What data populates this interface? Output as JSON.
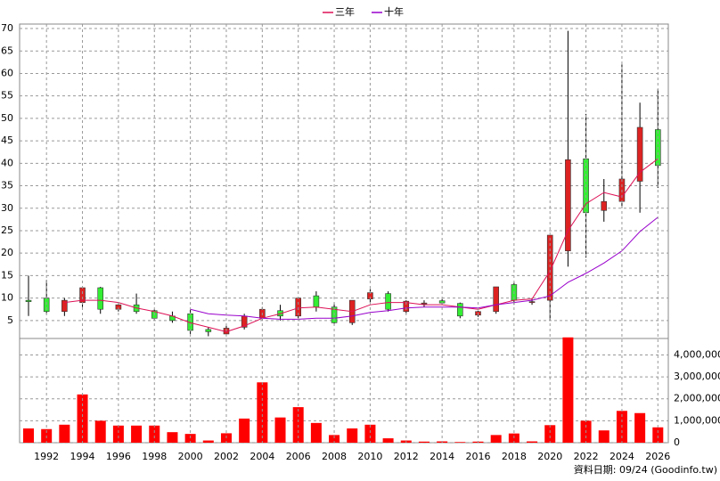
{
  "chart_data": [
    {
      "type": "candlestick",
      "open": [
        9.5,
        10,
        7,
        9,
        12.3,
        7.5,
        8.5,
        7.2,
        6,
        6.5,
        3,
        2,
        3.5,
        5.5,
        7.2,
        6,
        10.5,
        8,
        4.5,
        9.8,
        11,
        7,
        8.8,
        9.4,
        8.8,
        6.2,
        7,
        13,
        9.1,
        9.5,
        20.5,
        41,
        29.5,
        31.5,
        36,
        47.5
      ],
      "high": [
        15,
        14,
        10,
        12.5,
        12.5,
        9,
        11,
        7.5,
        7,
        7.5,
        3.5,
        4,
        6.5,
        8,
        8.5,
        10,
        11.5,
        9,
        9.5,
        12,
        11.5,
        9.5,
        9.5,
        9.8,
        9,
        7.2,
        12.5,
        13.5,
        10,
        24,
        69.5,
        51,
        36.5,
        62,
        53.5,
        56.5
      ],
      "low": [
        6,
        6.5,
        6,
        8,
        6.5,
        7,
        6.5,
        5,
        4.5,
        2,
        1.5,
        1.7,
        3,
        5,
        5,
        5.5,
        7,
        4,
        4,
        9,
        7,
        6.5,
        8,
        8.5,
        5.5,
        5.8,
        6.5,
        8.5,
        8.5,
        5,
        17,
        19,
        27,
        30,
        29,
        34.5
      ],
      "close": [
        9.2,
        7,
        9.5,
        12.3,
        7.5,
        8.5,
        7,
        5.5,
        5,
        2.8,
        2.5,
        3.3,
        6,
        7.5,
        6,
        10,
        8,
        4.5,
        9.5,
        11.2,
        7.5,
        9.3,
        8.9,
        8.9,
        6,
        7,
        12.5,
        9.5,
        9.2,
        24,
        40.8,
        29,
        31.5,
        36.5,
        48,
        39.5
      ],
      "up_color": "#dd2222",
      "down_color": "#33ee33",
      "series": [
        {
          "name": "三年",
          "color": "#dd1155",
          "values": [
            null,
            null,
            9,
            9.5,
            9.5,
            9,
            7.8,
            7,
            6,
            4.5,
            3.5,
            2.5,
            3.8,
            5.5,
            6.5,
            7.8,
            8,
            7.5,
            7,
            8.5,
            9,
            9,
            8.5,
            8.5,
            8,
            7.5,
            8.5,
            9.5,
            9.8,
            16,
            25,
            31,
            33.5,
            32.5,
            38,
            41
          ]
        },
        {
          "name": "十年",
          "color": "#9900cc",
          "values": [
            null,
            null,
            null,
            null,
            null,
            null,
            null,
            null,
            null,
            7.5,
            6.5,
            6.2,
            6,
            5.5,
            5.3,
            5.3,
            5.5,
            5.5,
            6,
            6.8,
            7.2,
            7.8,
            8,
            8,
            8,
            7.8,
            8.5,
            9,
            9.5,
            10.5,
            13.5,
            15.5,
            17.8,
            20.5,
            24.8,
            28
          ]
        }
      ],
      "ylim": [
        1,
        71
      ],
      "yticks": [
        5,
        10,
        15,
        20,
        25,
        30,
        35,
        40,
        45,
        50,
        55,
        60,
        65,
        70
      ],
      "grid": true
    },
    {
      "type": "bar",
      "categories": [
        null,
        "1992",
        null,
        "1994",
        null,
        "1996",
        null,
        "1998",
        null,
        "2000",
        null,
        "2002",
        null,
        "2004",
        null,
        "2006",
        null,
        "2008",
        null,
        "2010",
        null,
        "2012",
        null,
        "2014",
        null,
        "2016",
        null,
        "2018",
        null,
        "2020",
        null,
        "2022",
        null,
        "2024",
        null,
        "2026"
      ],
      "values": [
        650000,
        620000,
        820000,
        2200000,
        1000000,
        780000,
        780000,
        780000,
        480000,
        400000,
        100000,
        430000,
        1100000,
        2750000,
        1150000,
        1620000,
        900000,
        350000,
        650000,
        820000,
        200000,
        100000,
        50000,
        60000,
        30000,
        50000,
        350000,
        420000,
        60000,
        800000,
        4800000,
        1000000,
        560000,
        1450000,
        1350000,
        700000
      ],
      "color": "#ff0000",
      "ylim": [
        0,
        4750000
      ],
      "yticks": [
        0,
        {
          "value": 1000000,
          "label": "1,000,000"
        },
        {
          "value": 2000000,
          "label": "2,000,000"
        },
        {
          "value": 3000000,
          "label": "3,000,000"
        },
        {
          "value": 4000000,
          "label": "4,000,000"
        }
      ],
      "grid": true
    }
  ],
  "footer": "資料日期: 09/24 (Goodinfo.tw)"
}
